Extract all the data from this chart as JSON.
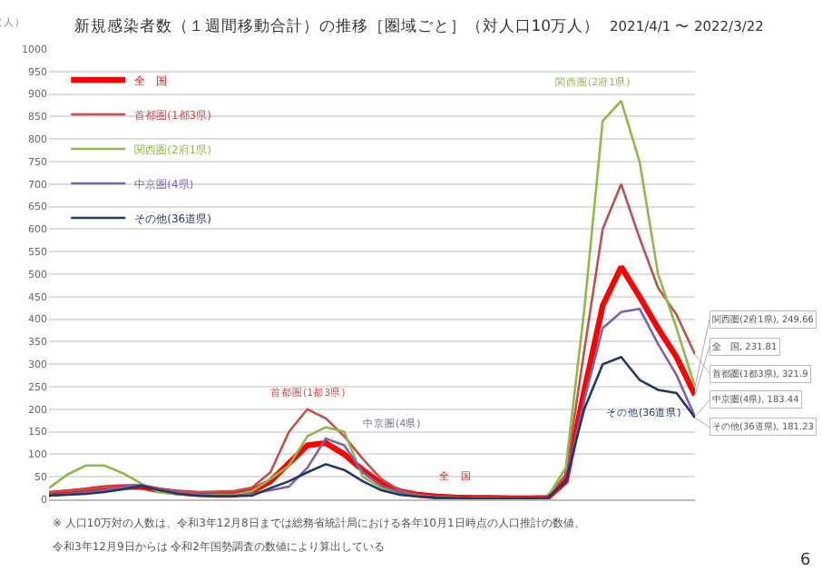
{
  "chart_data": {
    "type": "line",
    "title": "新規感染者数（１週間移動合計）の推移［圏域ごと］（対人口10万人）",
    "subtitle": "2021/4/1 〜 2022/3/22",
    "ylabel": "（人）",
    "categories": [
      null,
      null,
      null,
      null,
      null,
      null,
      null,
      null,
      null,
      null,
      null,
      null,
      null,
      null,
      null,
      null,
      null,
      null,
      null,
      null,
      null,
      null,
      null,
      null,
      null,
      null,
      null,
      null,
      null,
      null,
      null,
      null,
      null,
      null,
      null,
      null
    ],
    "series": [
      {
        "name": "全　国",
        "color": "#ff0000",
        "values": [
          12,
          16,
          20,
          25,
          27,
          28,
          20,
          15,
          12,
          10,
          10,
          18,
          40,
          80,
          120,
          125,
          100,
          65,
          35,
          18,
          10,
          6,
          4,
          3,
          3,
          2,
          2,
          3,
          40,
          240,
          430,
          516,
          450,
          380,
          316,
          231.81
        ],
        "value_labels": [
          null,
          null,
          null,
          null,
          null,
          null,
          null,
          null,
          null,
          null,
          null,
          null,
          null,
          null,
          null,
          null,
          null,
          null,
          null,
          null,
          null,
          null,
          null,
          null,
          null,
          null,
          null,
          null,
          null,
          null,
          null,
          null,
          null,
          null,
          null,
          "全　国, 231.81"
        ]
      },
      {
        "name": "首都圏(1都3県)",
        "color": "#c0504d",
        "values": [
          15,
          19,
          22,
          27,
          28,
          30,
          22,
          18,
          16,
          17,
          18,
          26,
          60,
          150,
          200,
          180,
          140,
          90,
          45,
          20,
          10,
          6,
          4,
          3,
          3,
          3,
          3,
          4,
          55,
          330,
          600,
          700,
          580,
          470,
          410,
          321.9
        ],
        "value_labels": [
          null,
          null,
          null,
          null,
          null,
          null,
          null,
          null,
          null,
          null,
          null,
          null,
          null,
          null,
          null,
          null,
          null,
          null,
          null,
          null,
          null,
          null,
          null,
          null,
          null,
          null,
          null,
          null,
          null,
          null,
          null,
          null,
          null,
          null,
          null,
          "首都圏(1都3県), 321.9"
        ]
      },
      {
        "name": "関西圏(2府1県)",
        "color": "#8fb946",
        "values": [
          25,
          55,
          75,
          75,
          58,
          35,
          15,
          11,
          10,
          10,
          10,
          18,
          45,
          75,
          140,
          160,
          150,
          50,
          25,
          12,
          8,
          5,
          4,
          3,
          3,
          2,
          2,
          4,
          70,
          420,
          840,
          885,
          750,
          500,
          380,
          249.66
        ],
        "value_labels": [
          null,
          null,
          null,
          null,
          null,
          null,
          null,
          null,
          null,
          null,
          null,
          null,
          null,
          null,
          null,
          null,
          null,
          null,
          null,
          null,
          null,
          null,
          null,
          null,
          null,
          null,
          null,
          null,
          null,
          null,
          null,
          null,
          null,
          null,
          null,
          "関西圏(2府1県), 249.66"
        ]
      },
      {
        "name": "中京圏(4県)",
        "color": "#8064a2",
        "values": [
          8,
          12,
          15,
          20,
          28,
          32,
          22,
          14,
          10,
          8,
          8,
          12,
          20,
          28,
          70,
          135,
          120,
          60,
          30,
          15,
          8,
          5,
          3,
          2,
          2,
          2,
          2,
          3,
          40,
          220,
          380,
          416,
          423,
          345,
          276,
          183.44
        ],
        "value_labels": [
          null,
          null,
          null,
          null,
          null,
          null,
          null,
          null,
          null,
          null,
          null,
          null,
          null,
          null,
          null,
          null,
          null,
          null,
          null,
          null,
          null,
          null,
          null,
          null,
          null,
          null,
          null,
          null,
          null,
          null,
          null,
          null,
          null,
          null,
          null,
          "中京圏(4県), 183.44"
        ]
      },
      {
        "name": "その他(36道県)",
        "color": "#1f3864",
        "values": [
          8,
          10,
          12,
          16,
          22,
          30,
          20,
          12,
          8,
          7,
          7,
          8,
          25,
          40,
          60,
          78,
          65,
          40,
          20,
          10,
          6,
          4,
          3,
          2,
          2,
          2,
          2,
          3,
          40,
          200,
          300,
          316,
          265,
          243,
          236,
          181.23
        ],
        "value_labels": [
          null,
          null,
          null,
          null,
          null,
          null,
          null,
          null,
          null,
          null,
          null,
          null,
          null,
          null,
          null,
          null,
          null,
          null,
          null,
          null,
          null,
          null,
          null,
          null,
          null,
          null,
          null,
          null,
          null,
          null,
          null,
          null,
          null,
          null,
          null,
          "その他(36道県), 181.23"
        ]
      }
    ],
    "ylim": [
      0,
      1000
    ],
    "yticks": [
      0,
      50,
      100,
      150,
      200,
      250,
      300,
      350,
      400,
      450,
      500,
      550,
      600,
      650,
      700,
      750,
      800,
      850,
      900,
      950,
      1000
    ],
    "grid": "y",
    "legend": "top left",
    "tick_labels": "y",
    "annotations": [
      "関西圏(2府1県)",
      "首都圏(1都3県)",
      "中京圏(4県)",
      "全　国",
      "その他(36道県)",
      "※ 人口10万対の人数は、令和3年12月8日までは総務省統計局における各年10月1日時点の人口推計の数値、",
      "令和3年12月9日からは 令和2年国勢調査の数値により算出している",
      "6"
    ]
  }
}
